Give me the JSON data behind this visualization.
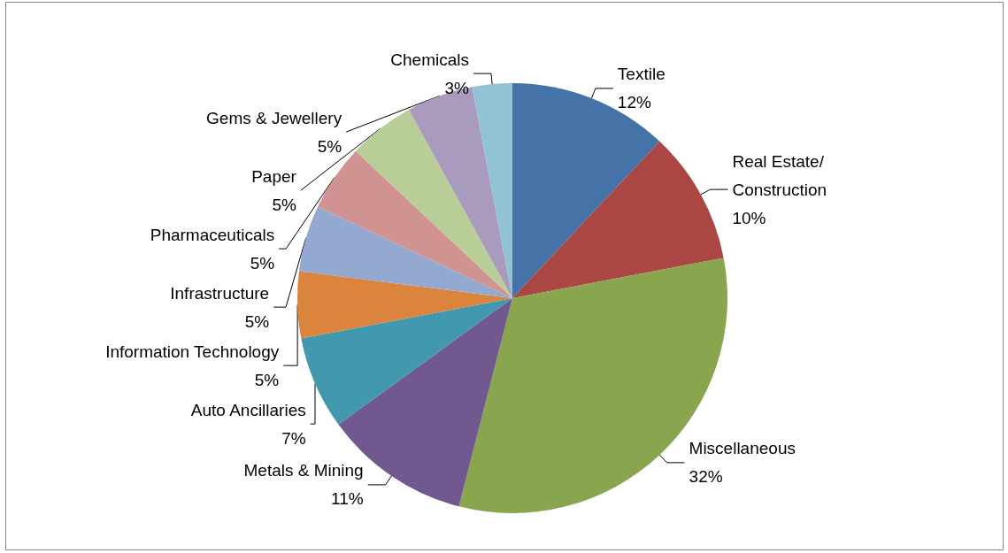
{
  "chart_data": {
    "type": "pie",
    "categories": [
      "Textile",
      "Real Estate/Construction",
      "Miscellaneous",
      "Metals & Mining",
      "Auto Ancillaries",
      "Information Technology",
      "Infrastructure",
      "Pharmaceuticals",
      "Paper",
      "Gems & Jewellery",
      "Chemicals"
    ],
    "values": [
      12,
      10,
      32,
      11,
      7,
      5,
      5,
      5,
      5,
      5,
      3
    ],
    "value_labels": [
      "12%",
      "10%",
      "32%",
      "11%",
      "7%",
      "5%",
      "5%",
      "5%",
      "5%",
      "5%",
      "3%"
    ],
    "colors": [
      "#4572a7",
      "#aa4643",
      "#89a54e",
      "#71588f",
      "#4198af",
      "#db843d",
      "#93a9cf",
      "#d19392",
      "#b9cd96",
      "#a99bbd",
      "#92c3d5"
    ],
    "legend": false
  }
}
